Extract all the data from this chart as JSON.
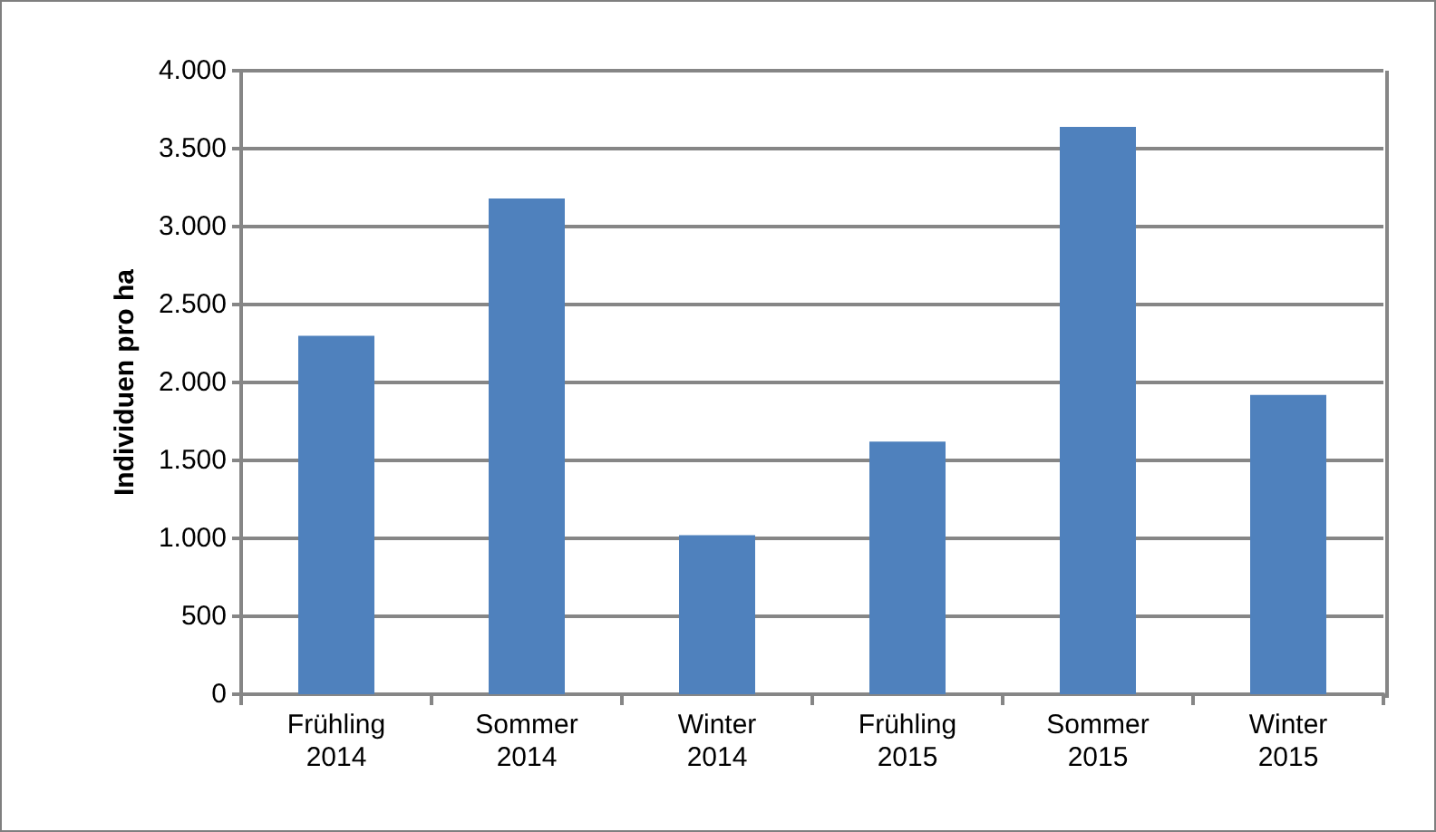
{
  "chart_data": {
    "type": "bar",
    "ylabel": "Individuen pro ha",
    "categories": [
      "Frühling\n2014",
      "Sommer\n2014",
      "Winter\n2014",
      "Frühling\n2015",
      "Sommer\n2015",
      "Winter\n2015"
    ],
    "values": [
      2300,
      3180,
      1020,
      1620,
      3640,
      1920
    ],
    "color": "#4f81bd",
    "ylim": [
      0,
      4000
    ],
    "yticks": [
      0,
      {
        "value": 500,
        "label": "500"
      },
      {
        "value": 1000,
        "label": "1.000"
      },
      {
        "value": 1500,
        "label": "1.500"
      },
      {
        "value": 2000,
        "label": "2.000"
      },
      {
        "value": 2500,
        "label": "2.500"
      },
      {
        "value": 3000,
        "label": "3.000"
      },
      {
        "value": 3500,
        "label": "3.500"
      },
      {
        "value": 4000,
        "label": "4.000"
      }
    ],
    "grid": "y"
  }
}
